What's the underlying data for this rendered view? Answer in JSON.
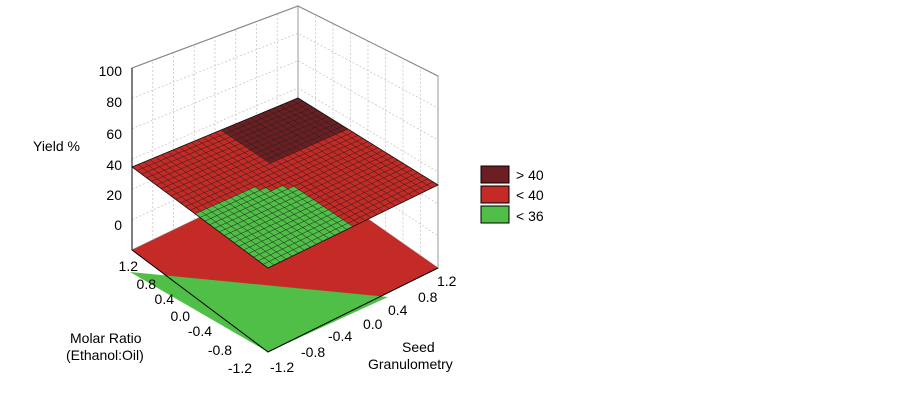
{
  "chart_data": {
    "type": "surface3d",
    "title": "",
    "zlabel": "Yield %",
    "xlabel_lines": [
      "Molar Ratio",
      "(Ethanol:Oil)"
    ],
    "ylabel_lines": [
      "Seed",
      "Granulometry"
    ],
    "z_ticks": [
      "100",
      "80",
      "60",
      "40",
      "20",
      "0"
    ],
    "x_ticks": [
      "1.2",
      "0.8",
      "0.4",
      "0.0",
      "-0.4",
      "-0.8",
      "-1.2"
    ],
    "y_ticks": [
      "1.2",
      "0.8",
      "0.4",
      "0.0",
      "-0.4",
      "-0.8",
      "-1.2"
    ],
    "xlim": [
      -1.2,
      1.2
    ],
    "ylim": [
      -1.2,
      1.2
    ],
    "zlim": [
      0,
      100
    ],
    "grid": true,
    "legend_position": "right",
    "legend": [
      {
        "label": "> 40",
        "color": "#6b1f22"
      },
      {
        "label": "< 40",
        "color": "#c42a26"
      },
      {
        "label": "< 36",
        "color": "#4fbf47"
      }
    ],
    "surface_corners": [
      {
        "x": 1.2,
        "y": -1.2,
        "z": 35
      },
      {
        "x": 1.2,
        "y": 1.2,
        "z": 52
      },
      {
        "x": -1.2,
        "y": 1.2,
        "z": 43
      },
      {
        "x": -1.2,
        "y": -1.2,
        "z": 20
      }
    ]
  }
}
